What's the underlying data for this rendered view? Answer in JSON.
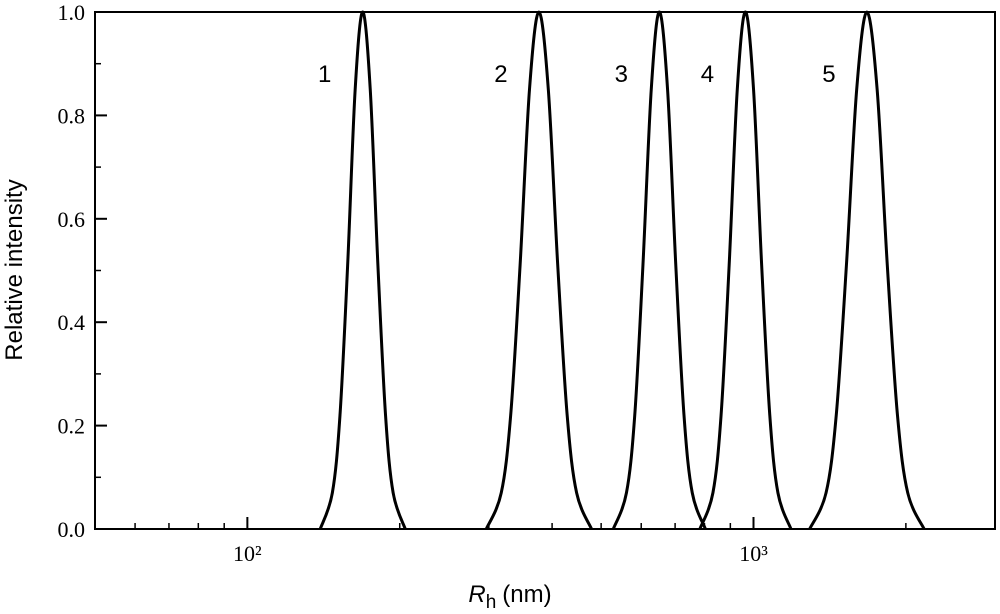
{
  "chart_data": {
    "type": "line",
    "xlabel": {
      "symbol": "R",
      "subscript": "h",
      "unit": "(nm)"
    },
    "ylabel": "Relative intensity",
    "xscale": "log",
    "xlim": [
      50,
      3000
    ],
    "ylim": [
      0,
      1
    ],
    "xticks": [
      {
        "value": 100,
        "label": "10²"
      },
      {
        "value": 1000,
        "label": "10³"
      }
    ],
    "xminorticks": [
      60,
      70,
      80,
      90,
      200,
      300,
      400,
      500,
      600,
      700,
      800,
      900,
      2000
    ],
    "yticks": [
      {
        "value": 0,
        "label": "0.0"
      },
      0.2,
      0.4,
      0.6,
      0.8,
      {
        "value": 1,
        "label": "1.0"
      }
    ],
    "yminorticks": [
      0.1,
      0.3,
      0.5,
      0.7,
      0.9
    ],
    "series": [
      {
        "name": "1",
        "color": "#000000",
        "x": [
          139.3,
          147.2,
          152.4,
          157.8,
          163.3,
          169.0,
          174.9,
          181.1,
          187.5,
          194.1,
          205.1
        ],
        "values": [
          0,
          0.07,
          0.22,
          0.51,
          0.85,
          1,
          0.85,
          0.51,
          0.22,
          0.07,
          0
        ]
      },
      {
        "name": "2",
        "color": "#000000",
        "x": [
          296.5,
          317.4,
          331.3,
          345.8,
          360.9,
          376.7,
          393.2,
          410.4,
          428.4,
          447.2,
          478.6
        ],
        "values": [
          0,
          0.07,
          0.22,
          0.51,
          0.85,
          1,
          0.85,
          0.51,
          0.22,
          0.07,
          0
        ]
      },
      {
        "name": "3",
        "color": "#000000",
        "x": [
          528.4,
          561.0,
          582.6,
          604.7,
          628.0,
          651.6,
          676.4,
          702.2,
          728.9,
          756.8,
          803.5
        ],
        "values": [
          0,
          0.07,
          0.22,
          0.51,
          0.85,
          1,
          0.85,
          0.51,
          0.22,
          0.07,
          0
        ]
      },
      {
        "name": "4",
        "color": "#000000",
        "x": [
          783.4,
          831.4,
          862.8,
          895.1,
          928.8,
          963.8,
          1000.2,
          1037.8,
          1076.9,
          1117.5,
          1185.8
        ],
        "values": [
          0,
          0.07,
          0.22,
          0.51,
          0.85,
          1,
          0.85,
          0.51,
          0.22,
          0.07,
          0
        ]
      },
      {
        "name": "5",
        "color": "#000000",
        "x": [
          1291,
          1391,
          1457,
          1526,
          1599,
          1675,
          1755,
          1838,
          1925,
          2017,
          2173
        ],
        "values": [
          0,
          0.07,
          0.22,
          0.51,
          0.85,
          1,
          0.85,
          0.51,
          0.22,
          0.07,
          0
        ]
      }
    ]
  }
}
